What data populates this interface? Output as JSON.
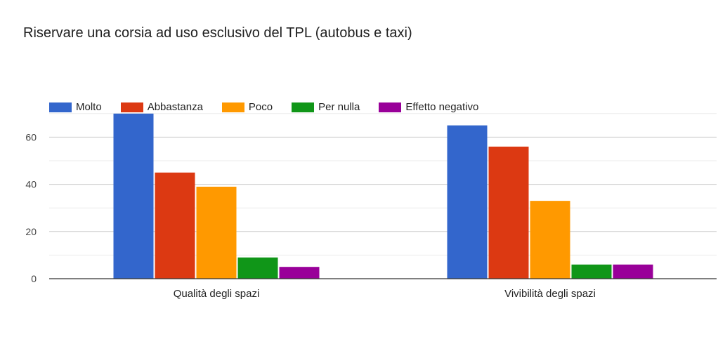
{
  "chart_data": {
    "type": "bar",
    "title": "Riservare una corsia ad uso esclusivo del TPL (autobus e taxi)",
    "categories": [
      "Qualità degli spazi",
      "Vivibilità degli spazi"
    ],
    "series": [
      {
        "name": "Molto",
        "color": "#3366cc",
        "values": [
          70,
          65
        ]
      },
      {
        "name": "Abbastanza",
        "color": "#dc3912",
        "values": [
          45,
          56
        ]
      },
      {
        "name": "Poco",
        "color": "#ff9900",
        "values": [
          39,
          33
        ]
      },
      {
        "name": "Per nulla",
        "color": "#109618",
        "values": [
          9,
          6
        ]
      },
      {
        "name": "Effetto negativo",
        "color": "#990099",
        "values": [
          5,
          6
        ]
      }
    ],
    "yticks": [
      0,
      20,
      40,
      60
    ],
    "ylim": [
      0,
      70
    ],
    "grid": true,
    "legend_position": "top"
  }
}
